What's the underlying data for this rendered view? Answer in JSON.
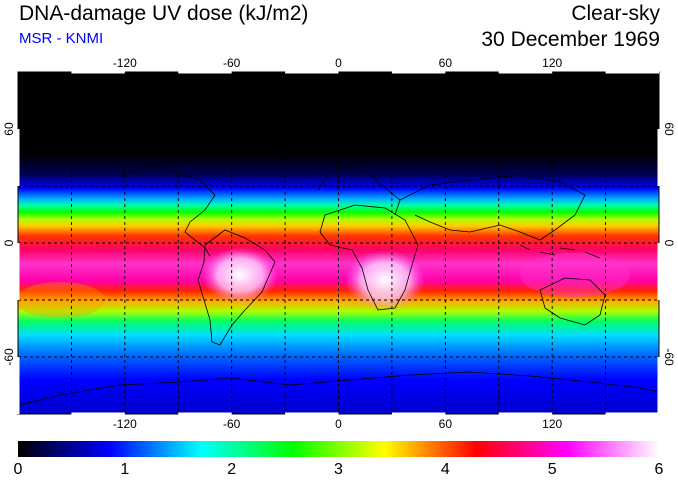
{
  "header": {
    "title": "DNA-damage UV dose (kJ/m2)",
    "source": "MSR - KNMI",
    "sky_condition": "Clear-sky",
    "date": "30 December 1969"
  },
  "map": {
    "projection": "equirectangular",
    "lon_range": [
      -180,
      180
    ],
    "lat_range": [
      -90,
      90
    ],
    "lon_ticks": [
      {
        "label": "-120",
        "value": -120
      },
      {
        "label": "-60",
        "value": -60
      },
      {
        "label": "0",
        "value": 0
      },
      {
        "label": "60",
        "value": 60
      },
      {
        "label": "120",
        "value": 120
      }
    ],
    "lat_ticks": [
      {
        "label": "60",
        "value": 60
      },
      {
        "label": "0",
        "value": 0
      },
      {
        "label": "-60",
        "value": -60
      }
    ]
  },
  "colorbar": {
    "min": 0,
    "max": 6,
    "labels": [
      "0",
      "1",
      "2",
      "3",
      "4",
      "5",
      "6"
    ],
    "stops": [
      "#000000",
      "#0000ff",
      "#00ffff",
      "#00ff00",
      "#ffff00",
      "#ff0000",
      "#ff00ff",
      "#ffffff"
    ]
  }
}
